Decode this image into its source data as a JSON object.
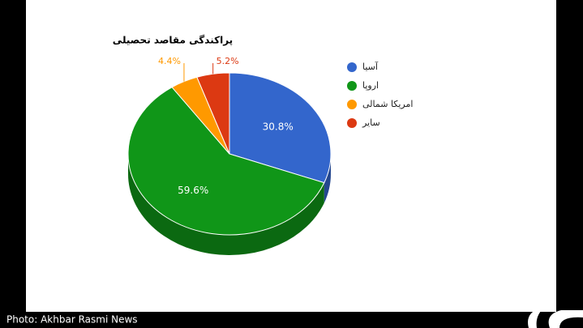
{
  "chart_data": {
    "type": "pie",
    "title": "پراکندگی مقاصد تحصیلی",
    "categories": [
      "آسیا",
      "اروپا",
      "امریکا شمالی",
      "سایر"
    ],
    "values": [
      30.8,
      59.6,
      4.4,
      5.2
    ],
    "value_labels": [
      "30.8%",
      "59.6%",
      "4.4%",
      "5.2%"
    ],
    "colors": [
      "#3366cc",
      "#109618",
      "#ff9900",
      "#dc3912"
    ],
    "legend": "right"
  },
  "caption": "Photo: Akhbar Rasmi News"
}
